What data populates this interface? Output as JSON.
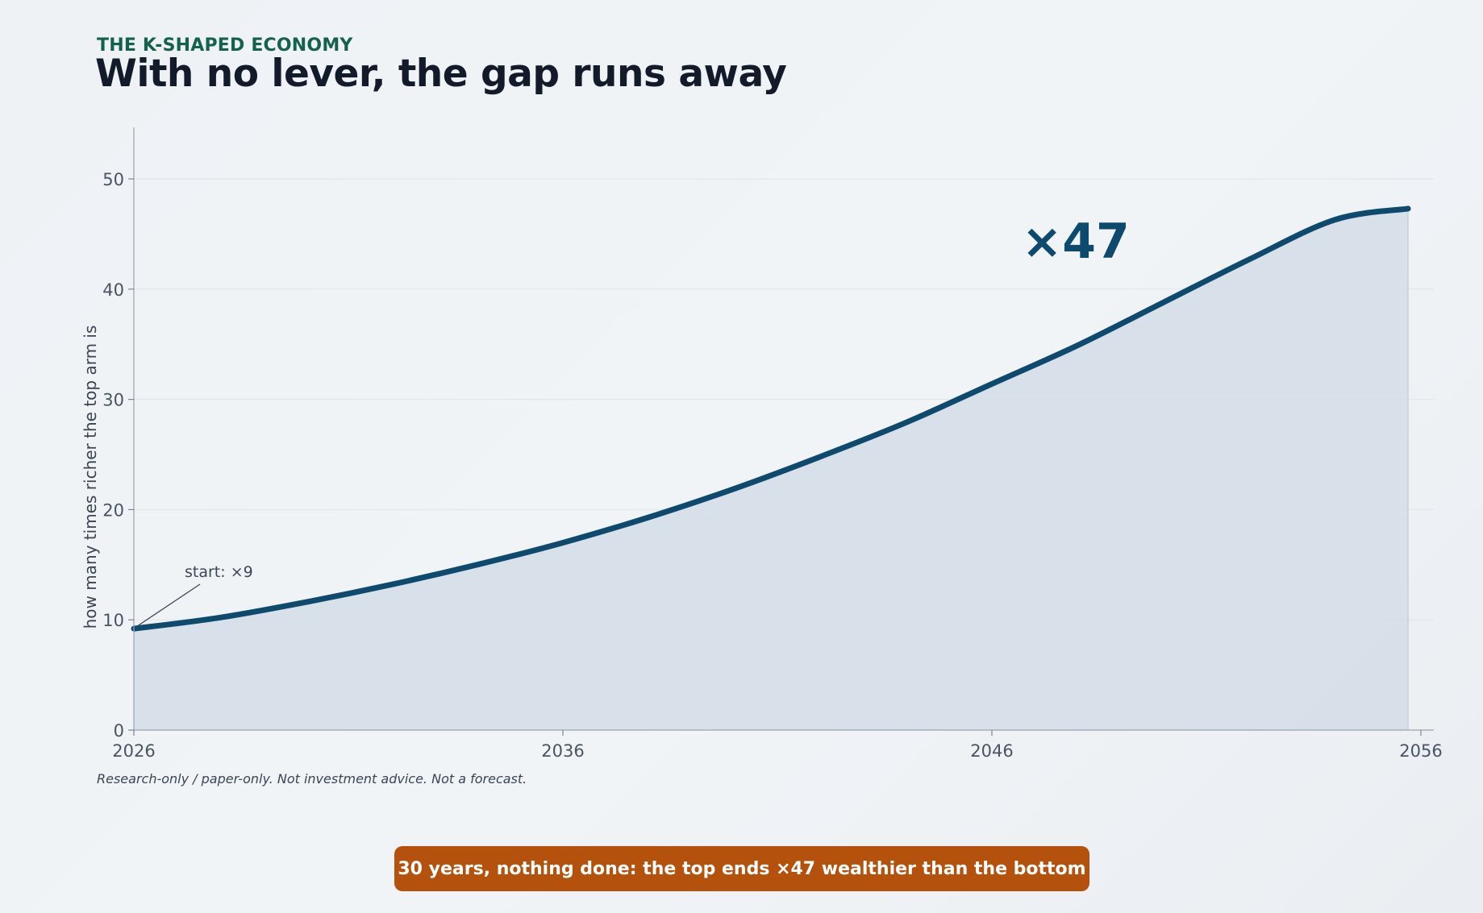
{
  "header": {
    "kicker": "THE K-SHAPED ECONOMY",
    "title": "With no lever, the gap runs away"
  },
  "footer": {
    "disclaimer": "Research-only / paper-only.  Not investment advice.  Not a forecast.",
    "banner": "30 years, nothing done: the top ends ×47 wealthier than the bottom"
  },
  "colors": {
    "line": "#0e4a6e",
    "area": "#d3dde6",
    "banner": "#b4520d",
    "kicker": "#15614f"
  },
  "chart_data": {
    "type": "area",
    "title": "With no lever, the gap runs away",
    "xlabel": "",
    "ylabel": "how many times richer the top arm is",
    "x": [
      2026,
      2028,
      2030,
      2032,
      2034,
      2036,
      2038,
      2040,
      2042,
      2044,
      2046,
      2048,
      2050,
      2052,
      2054,
      2055.7
    ],
    "y": [
      9.2,
      10.2,
      11.6,
      13.2,
      15.0,
      17.0,
      19.3,
      21.9,
      24.8,
      27.9,
      31.4,
      34.9,
      38.8,
      42.7,
      46.3,
      47.3
    ],
    "xticks": [
      2026,
      2036,
      2046,
      2056
    ],
    "yticks": [
      0,
      10,
      20,
      30,
      40,
      50
    ],
    "xlim": [
      2026,
      2056
    ],
    "ylim": [
      0,
      55
    ],
    "grid": true,
    "annotations": [
      {
        "text": "start: ×9",
        "x": 2026,
        "y": 9.2
      },
      {
        "text": "×47",
        "x": 2055.7,
        "y": 47.3
      }
    ]
  }
}
